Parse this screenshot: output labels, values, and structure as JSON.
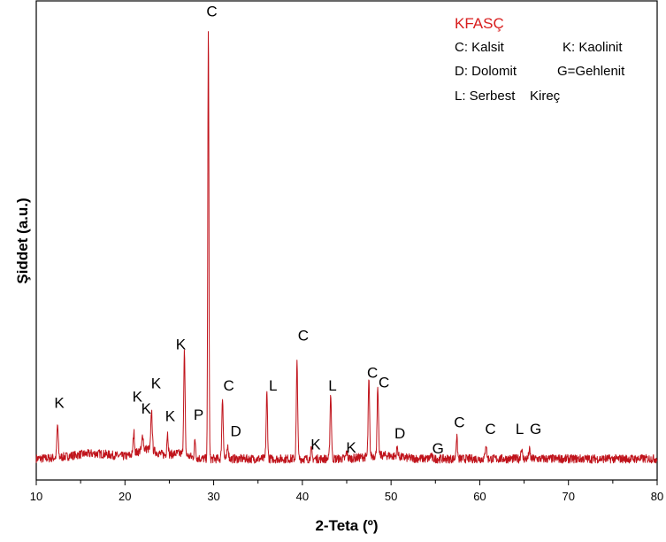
{
  "colors": {
    "trace": "#c0141c",
    "legend_title": "#d81e1e",
    "axis": "#000000"
  },
  "chart_data": {
    "type": "line",
    "title": "",
    "xlabel": "2-Teta (º)",
    "ylabel": "Şiddet  (a.u.)",
    "xlim": [
      10,
      80
    ],
    "xticks": [
      "10",
      "20",
      "30",
      "40",
      "50",
      "60",
      "70",
      "80"
    ],
    "legend": {
      "placement": "top-right",
      "title": "KFASÇ",
      "lines": [
        "C: Kalsit",
        "K: Kaolinit",
        "D: Dolomit",
        "G=Gehlenit",
        "L: Serbest",
        "Kireç"
      ]
    },
    "series": [
      {
        "peaks": [
          {
            "x": 12.4,
            "h": 0.075
          },
          {
            "x": 21.0,
            "h": 0.05
          },
          {
            "x": 22.0,
            "h": 0.035
          },
          {
            "x": 23.0,
            "h": 0.09
          },
          {
            "x": 24.8,
            "h": 0.05
          },
          {
            "x": 26.7,
            "h": 0.235
          },
          {
            "x": 27.9,
            "h": 0.04
          },
          {
            "x": 29.4,
            "h": 1.0
          },
          {
            "x": 31.0,
            "h": 0.14
          },
          {
            "x": 31.6,
            "h": 0.03
          },
          {
            "x": 36.0,
            "h": 0.15
          },
          {
            "x": 39.4,
            "h": 0.22
          },
          {
            "x": 41.0,
            "h": 0.02
          },
          {
            "x": 43.2,
            "h": 0.15
          },
          {
            "x": 45.0,
            "h": 0.015
          },
          {
            "x": 47.5,
            "h": 0.175
          },
          {
            "x": 48.5,
            "h": 0.15
          },
          {
            "x": 50.7,
            "h": 0.02
          },
          {
            "x": 54.5,
            "h": 0.01
          },
          {
            "x": 57.4,
            "h": 0.05
          },
          {
            "x": 60.7,
            "h": 0.035
          },
          {
            "x": 64.7,
            "h": 0.025
          },
          {
            "x": 65.6,
            "h": 0.02
          }
        ]
      }
    ],
    "annotations": [
      {
        "text": "K",
        "x": 12.6,
        "y": 0.125
      },
      {
        "text": "K",
        "x": 21.4,
        "y": 0.14
      },
      {
        "text": "K",
        "x": 22.4,
        "y": 0.112
      },
      {
        "text": "K",
        "x": 23.5,
        "y": 0.17
      },
      {
        "text": "K",
        "x": 25.1,
        "y": 0.095
      },
      {
        "text": "K",
        "x": 26.3,
        "y": 0.26
      },
      {
        "text": "P",
        "x": 28.3,
        "y": 0.098
      },
      {
        "text": "C",
        "x": 29.8,
        "y": 1.025
      },
      {
        "text": "C",
        "x": 31.7,
        "y": 0.165
      },
      {
        "text": "D",
        "x": 32.5,
        "y": 0.06
      },
      {
        "text": "L",
        "x": 36.7,
        "y": 0.165
      },
      {
        "text": "C",
        "x": 40.1,
        "y": 0.28
      },
      {
        "text": "K",
        "x": 41.5,
        "y": 0.03
      },
      {
        "text": "L",
        "x": 43.4,
        "y": 0.165
      },
      {
        "text": "K",
        "x": 45.5,
        "y": 0.022
      },
      {
        "text": "C",
        "x": 47.9,
        "y": 0.195
      },
      {
        "text": "C",
        "x": 49.2,
        "y": 0.172
      },
      {
        "text": "D",
        "x": 51.0,
        "y": 0.055
      },
      {
        "text": "G",
        "x": 55.3,
        "y": 0.02
      },
      {
        "text": "C",
        "x": 57.7,
        "y": 0.08
      },
      {
        "text": "C",
        "x": 61.2,
        "y": 0.065
      },
      {
        "text": "L",
        "x": 64.5,
        "y": 0.065
      },
      {
        "text": "G",
        "x": 66.3,
        "y": 0.065
      }
    ]
  }
}
